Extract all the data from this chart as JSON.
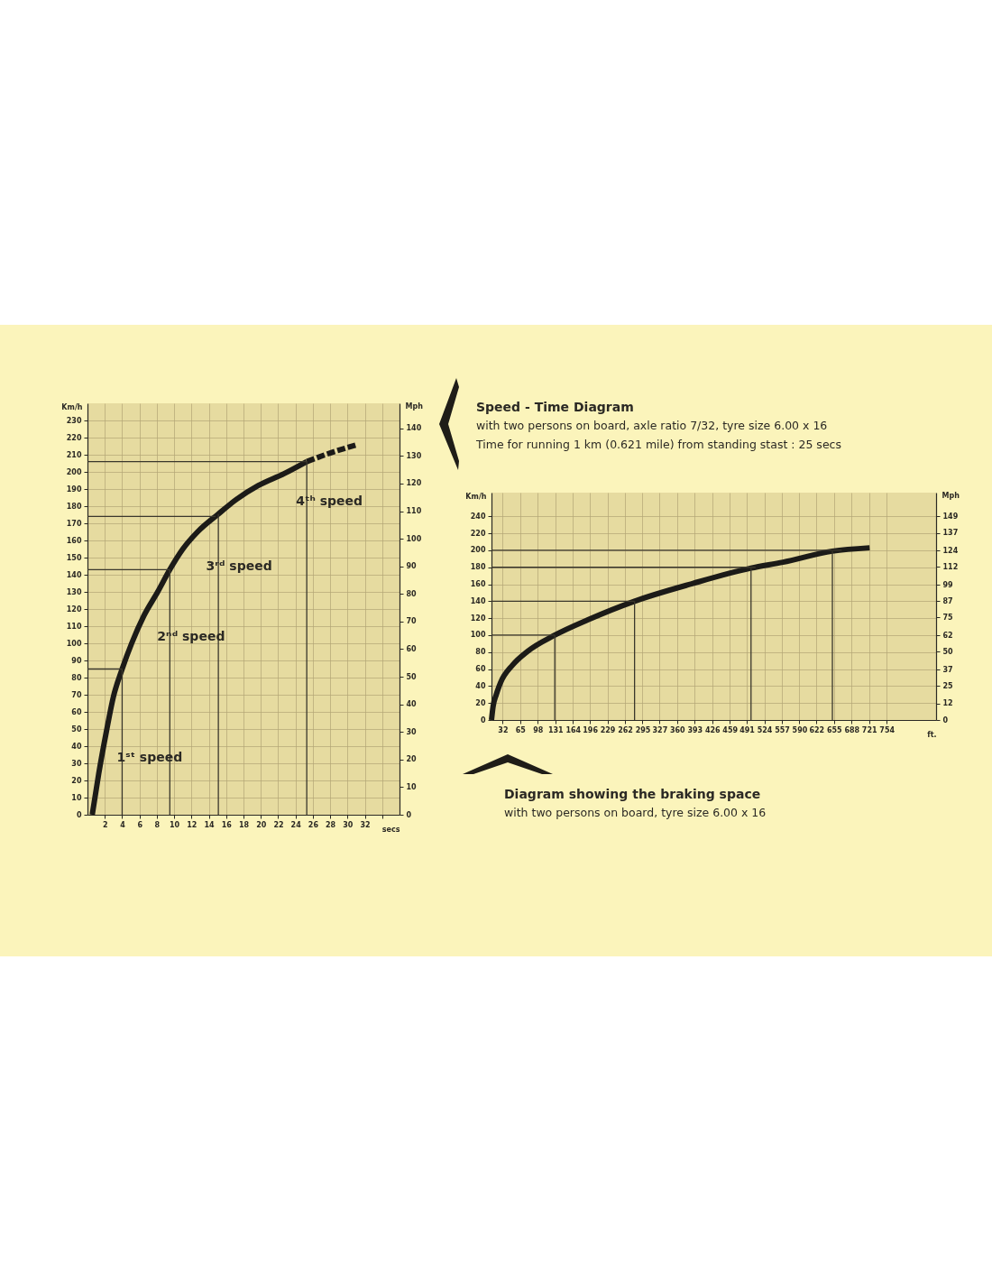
{
  "chart_data": [
    {
      "type": "line",
      "xlabel": "secs",
      "ylabel": "Km/h",
      "y2label": "Mph",
      "annotations": [
        "Speed - Time Diagram",
        "with two persons on board, axle ratio 7/32, tyre size 6.00 x 16",
        "Time for running 1 km (0.621 mile) from standing stast : 25 secs",
        "1ˢᵗ speed",
        "2ⁿᵈ speed",
        "3ʳᵈ speed",
        "4ᵗʰ speed"
      ],
      "series": [
        {
          "color": "#1c1b18",
          "line_style": "solid",
          "x": [
            0.55,
            1.3,
            2.2,
            3.0,
            4.0,
            5.1,
            6.5,
            8.1,
            9.5,
            11.0,
            12.7,
            15.0,
            17.2,
            19.7,
            22.7,
            25.3
          ],
          "values": [
            0,
            24,
            49,
            69,
            85,
            100,
            116,
            130,
            143,
            155,
            165,
            175,
            184,
            192,
            199,
            206
          ]
        },
        {
          "color": "#1c1b18",
          "line_style": "dashed",
          "x": [
            25.3,
            28,
            31.2
          ],
          "values": [
            206,
            211,
            216
          ]
        }
      ],
      "xlim": [
        0,
        36
      ],
      "xticks": [
        2,
        4,
        6,
        8,
        10,
        12,
        14,
        16,
        18,
        20,
        22,
        24,
        26,
        28,
        30,
        32,
        {
          "value": 34,
          "label": null
        }
      ],
      "ylim": [
        0,
        240
      ],
      "yticks": [
        0,
        10,
        20,
        30,
        40,
        50,
        60,
        70,
        80,
        90,
        100,
        110,
        120,
        130,
        140,
        150,
        160,
        170,
        180,
        190,
        200,
        210,
        220,
        230
      ],
      "y2lim": [
        0,
        149.1
      ],
      "y2ticks": [
        0,
        10,
        20,
        30,
        40,
        50,
        60,
        70,
        80,
        90,
        100,
        110,
        120,
        130,
        140
      ],
      "grid": true,
      "ref_lines": [
        {
          "axis": "x",
          "value": 4.0,
          "color": "#3a372c"
        },
        {
          "axis": "x",
          "value": 9.5,
          "color": "#3a372c"
        },
        {
          "axis": "x",
          "value": 15.1,
          "color": "#3a372c"
        },
        {
          "axis": "x",
          "value": 25.3,
          "color": "#3a372c"
        },
        {
          "axis": "y",
          "value": 85,
          "color": "#3a372c"
        },
        {
          "axis": "y",
          "value": 143,
          "color": "#3a372c"
        },
        {
          "axis": "y",
          "value": 174,
          "color": "#3a372c"
        },
        {
          "axis": "y",
          "value": 206,
          "color": "#3a372c"
        }
      ]
    },
    {
      "type": "line",
      "title": "Diagram showing the braking space",
      "subtitle": "with two persons on board, tyre size 6.00 x 16",
      "xlabel": "ft.",
      "ylabel": "Km/h",
      "y2label": "Mph",
      "series": [
        {
          "color": "#1c1b18",
          "x": [
            11,
            14,
            20,
            28,
            51,
            79,
            130,
            192,
            280,
            390,
            499,
            559,
            652,
            722
          ],
          "values": [
            0,
            16,
            30,
            44,
            65,
            81,
            100,
            118,
            140,
            161,
            179,
            186,
            199,
            203
          ]
        }
      ],
      "xlim": [
        11,
        847
      ],
      "xticks": [
        32,
        65,
        98,
        131,
        164,
        196,
        229,
        262,
        295,
        327,
        360,
        393,
        426,
        459,
        491,
        524,
        557,
        590,
        622,
        655,
        688,
        721,
        754
      ],
      "ylim": [
        0,
        268
      ],
      "yticks": [
        0,
        20,
        40,
        60,
        80,
        100,
        120,
        140,
        160,
        180,
        200,
        220,
        240
      ],
      "y2lim": [
        0,
        166.5
      ],
      "y2ticks": [
        0,
        12,
        25,
        37,
        50,
        62,
        75,
        87,
        99,
        112,
        124,
        137,
        149
      ],
      "grid": true,
      "ref_lines": [
        {
          "axis": "x",
          "value": 130,
          "color": "#3a372c"
        },
        {
          "axis": "x",
          "value": 280,
          "color": "#3a372c"
        },
        {
          "axis": "x",
          "value": 499,
          "color": "#3a372c"
        },
        {
          "axis": "x",
          "value": 652,
          "color": "#3a372c"
        },
        {
          "axis": "y",
          "value": 100,
          "color": "#3a372c"
        },
        {
          "axis": "y",
          "value": 140,
          "color": "#3a372c"
        },
        {
          "axis": "y",
          "value": 180,
          "color": "#3a372c"
        },
        {
          "axis": "y",
          "value": 200,
          "color": "#3a372c"
        }
      ]
    }
  ]
}
